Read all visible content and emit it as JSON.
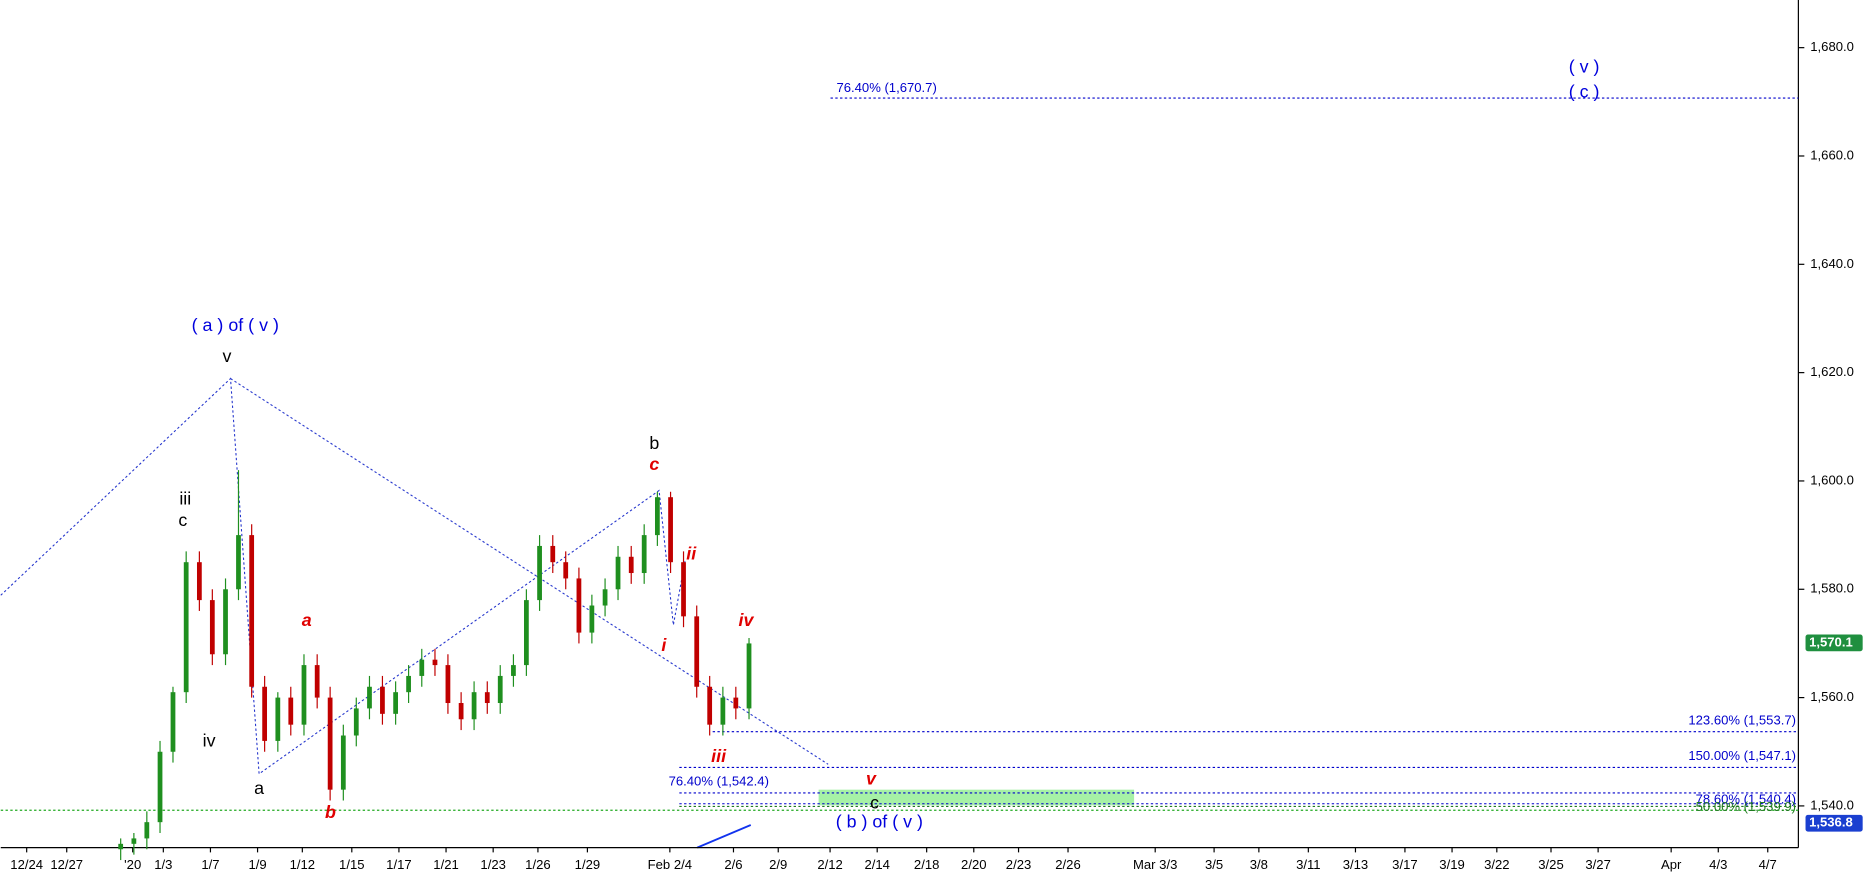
{
  "chart_data": {
    "type": "candlestick",
    "x": [
      4.19,
      4.75,
      5.3,
      5.86,
      6.41,
      6.97,
      7.53,
      8.08,
      8.64,
      9.19,
      9.75,
      10.3,
      10.86,
      11.41,
      11.97,
      12.53,
      13.08,
      13.64,
      14.19,
      14.75,
      15.3,
      15.86,
      16.41,
      16.97,
      17.53,
      18.08,
      18.64,
      19.19,
      19.75,
      20.3,
      20.86,
      21.41,
      21.97,
      22.53,
      23.08,
      23.64,
      24.19,
      24.75,
      25.3,
      25.86,
      26.41,
      26.97,
      27.53,
      28.08,
      28.64,
      29.19,
      29.75,
      30.3,
      30.86
    ],
    "open": [
      1532,
      1533,
      1534,
      1537,
      1550,
      1561,
      1585,
      1578,
      1568,
      1580,
      1590,
      1562,
      1552,
      1560,
      1555,
      1566,
      1560,
      1543,
      1553,
      1558,
      1562,
      1557,
      1561,
      1564,
      1567,
      1566,
      1559,
      1556,
      1561,
      1559,
      1564,
      1566,
      1578,
      1588,
      1585,
      1582,
      1572,
      1577,
      1580,
      1586,
      1583,
      1590,
      1597,
      1585,
      1575,
      1562,
      1555,
      1560,
      1558
    ],
    "high": [
      1534,
      1535,
      1539,
      1552,
      1562,
      1587,
      1587,
      1580,
      1582,
      1602,
      1592,
      1564,
      1561,
      1562,
      1568,
      1568,
      1562,
      1555,
      1560,
      1564,
      1564,
      1563,
      1566,
      1569,
      1569,
      1568,
      1561,
      1563,
      1563,
      1566,
      1568,
      1580,
      1590,
      1590,
      1587,
      1584,
      1579,
      1582,
      1588,
      1588,
      1592,
      1598,
      1598,
      1587,
      1577,
      1564,
      1562,
      1562,
      1571
    ],
    "low": [
      1530,
      1531,
      1532,
      1535,
      1548,
      1559,
      1576,
      1566,
      1566,
      1578,
      1560,
      1550,
      1550,
      1553,
      1553,
      1558,
      1541,
      1541,
      1551,
      1556,
      1555,
      1555,
      1559,
      1562,
      1564,
      1557,
      1554,
      1554,
      1557,
      1557,
      1562,
      1564,
      1576,
      1583,
      1580,
      1570,
      1570,
      1575,
      1578,
      1581,
      1581,
      1588,
      1583,
      1573,
      1560,
      1553,
      1553,
      1556,
      1556
    ],
    "close": [
      1533,
      1534,
      1537,
      1550,
      1561,
      1585,
      1578,
      1568,
      1580,
      1590,
      1562,
      1552,
      1560,
      1555,
      1566,
      1560,
      1543,
      1553,
      1558,
      1562,
      1557,
      1561,
      1564,
      1567,
      1566,
      1559,
      1556,
      1561,
      1559,
      1564,
      1566,
      1578,
      1588,
      1585,
      1582,
      1572,
      1577,
      1580,
      1586,
      1583,
      1590,
      1597,
      1585,
      1575,
      1562,
      1555,
      1560,
      1558,
      1570
    ],
    "up_color": "#1f8f1f",
    "down_color": "#c00000",
    "xlim": [
      -0.9,
      75.4
    ],
    "ylim": [
      1532.3,
      1688.8
    ],
    "xticks": [
      {
        "value": 0.2,
        "label": "12/24"
      },
      {
        "value": 1.9,
        "label": "12/27"
      },
      {
        "value": 4.7,
        "label": "'20"
      },
      {
        "value": 6.0,
        "label": "1/3"
      },
      {
        "value": 8.0,
        "label": "1/7"
      },
      {
        "value": 10.0,
        "label": "1/9"
      },
      {
        "value": 11.9,
        "label": "1/12"
      },
      {
        "value": 14.0,
        "label": "1/15"
      },
      {
        "value": 16.0,
        "label": "1/17"
      },
      {
        "value": 18.0,
        "label": "1/21"
      },
      {
        "value": 20.0,
        "label": "1/23"
      },
      {
        "value": 21.9,
        "label": "1/26"
      },
      {
        "value": 24.0,
        "label": "1/29"
      },
      {
        "value": 27.5,
        "label": "Feb 2/4"
      },
      {
        "value": 30.2,
        "label": "2/6"
      },
      {
        "value": 32.1,
        "label": "2/9"
      },
      {
        "value": 34.3,
        "label": "2/12"
      },
      {
        "value": 36.3,
        "label": "2/14"
      },
      {
        "value": 38.4,
        "label": "2/18"
      },
      {
        "value": 40.4,
        "label": "2/20"
      },
      {
        "value": 42.3,
        "label": "2/23"
      },
      {
        "value": 44.4,
        "label": "2/26"
      },
      {
        "value": 48.1,
        "label": "Mar 3/3"
      },
      {
        "value": 50.6,
        "label": "3/5"
      },
      {
        "value": 52.5,
        "label": "3/8"
      },
      {
        "value": 54.6,
        "label": "3/11"
      },
      {
        "value": 56.6,
        "label": "3/13"
      },
      {
        "value": 58.7,
        "label": "3/17"
      },
      {
        "value": 60.7,
        "label": "3/19"
      },
      {
        "value": 62.6,
        "label": "3/22"
      },
      {
        "value": 64.9,
        "label": "3/25"
      },
      {
        "value": 66.9,
        "label": "3/27"
      },
      {
        "value": 70.0,
        "label": "Apr"
      },
      {
        "value": 72.0,
        "label": "4/3"
      },
      {
        "value": 74.1,
        "label": "4/7"
      }
    ],
    "yticks": [
      {
        "value": 1540,
        "label": "1,540.0"
      },
      {
        "value": 1560,
        "label": "1,560.0"
      },
      {
        "value": 1580,
        "label": "1,580.0"
      },
      {
        "value": 1600,
        "label": "1,600.0"
      },
      {
        "value": 1620,
        "label": "1,620.0"
      },
      {
        "value": 1640,
        "label": "1,640.0"
      },
      {
        "value": 1660,
        "label": "1,660.0"
      },
      {
        "value": 1680,
        "label": "1,680.0"
      }
    ],
    "levels": [
      {
        "label": "76.40% (1,670.7)",
        "value": 1670.7,
        "color": "#0000cc"
      },
      {
        "label": "123.60% (1,553.7)",
        "value": 1553.7,
        "color": "#0000cc"
      },
      {
        "label": "150.00% (1,547.1)",
        "value": 1547.1,
        "color": "#0000cc"
      },
      {
        "label": "76.40% (1,542.4)",
        "value": 1542.4,
        "color": "#0000cc"
      },
      {
        "label": "78.60% (1,540.4)",
        "value": 1540.4,
        "color": "#0000cc"
      },
      {
        "label": "50.00% (1,539.9)",
        "value": 1539.9,
        "color": "#1f7a1f"
      }
    ],
    "support": 1539.2,
    "support_color": "#22aa22",
    "zone": [
      1540.1,
      1543
    ],
    "zone_color": "#90ee90",
    "price_tags": [
      {
        "label": "1,570.1",
        "value": 1570.1,
        "color": "#1f8f3f"
      },
      {
        "label": "1,536.8",
        "value": 1536.8,
        "color": "#1a3fd0"
      }
    ],
    "annotations": [
      {
        "text": "( a )  of ( v )",
        "color": "#0000dd"
      },
      {
        "text": "v",
        "color": "#000"
      },
      {
        "text": "iii",
        "color": "#000"
      },
      {
        "text": "c",
        "color": "#000"
      },
      {
        "text": "iv",
        "color": "#000"
      },
      {
        "text": "a",
        "color": "#000"
      },
      {
        "text": "a",
        "color": "#e00000"
      },
      {
        "text": "b",
        "color": "#e00000"
      },
      {
        "text": "b",
        "color": "#000"
      },
      {
        "text": "c",
        "color": "#e00000"
      },
      {
        "text": "ii",
        "color": "#e00000"
      },
      {
        "text": "i",
        "color": "#e00000"
      },
      {
        "text": "iii",
        "color": "#e00000"
      },
      {
        "text": "iv",
        "color": "#e00000"
      },
      {
        "text": "v",
        "color": "#e00000"
      },
      {
        "text": "c",
        "color": "#000"
      },
      {
        "text": "( b )  of ( v )",
        "color": "#0000dd"
      },
      {
        "text": "( v )",
        "color": "#0000dd"
      },
      {
        "text": "( c )",
        "color": "#0000dd"
      }
    ]
  }
}
